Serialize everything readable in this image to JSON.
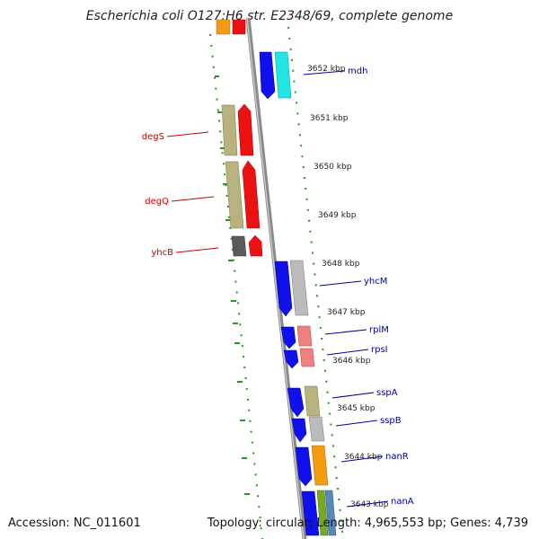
{
  "title": "Escherichia coli O127:H6 str. E2348/69, complete genome",
  "accession": "Accession: NC_011601",
  "summary": "Topology: circular; Length: 4,965,553 bp; Genes: 4,739",
  "colors": {
    "dots": "#229922",
    "backbone": "#8c8c8c",
    "left_label": "#cc0000",
    "right_label": "#000099"
  },
  "kbp_labels": [
    {
      "text": "3652 kbp",
      "kbp": 3652
    },
    {
      "text": "3651 kbp",
      "kbp": 3651
    },
    {
      "text": "3650 kbp",
      "kbp": 3650
    },
    {
      "text": "3649 kbp",
      "kbp": 3649
    },
    {
      "text": "3648 kbp",
      "kbp": 3648
    },
    {
      "text": "3647 kbp",
      "kbp": 3647
    },
    {
      "text": "3646 kbp",
      "kbp": 3646
    },
    {
      "text": "3645 kbp",
      "kbp": 3645
    },
    {
      "text": "3644 kbp",
      "kbp": 3644
    },
    {
      "text": "3643 kbp",
      "kbp": 3643
    }
  ],
  "gene_labels": [
    {
      "name": "mdh",
      "side": "right"
    },
    {
      "name": "degS",
      "side": "left"
    },
    {
      "name": "degQ",
      "side": "left"
    },
    {
      "name": "yhcB",
      "side": "left"
    },
    {
      "name": "yhcM",
      "side": "right"
    },
    {
      "name": "rplM",
      "side": "right"
    },
    {
      "name": "rpsI",
      "side": "right"
    },
    {
      "name": "sspA",
      "side": "right"
    },
    {
      "name": "sspB",
      "side": "right"
    },
    {
      "name": "nanR",
      "side": "right"
    },
    {
      "name": "nanA",
      "side": "right"
    }
  ]
}
